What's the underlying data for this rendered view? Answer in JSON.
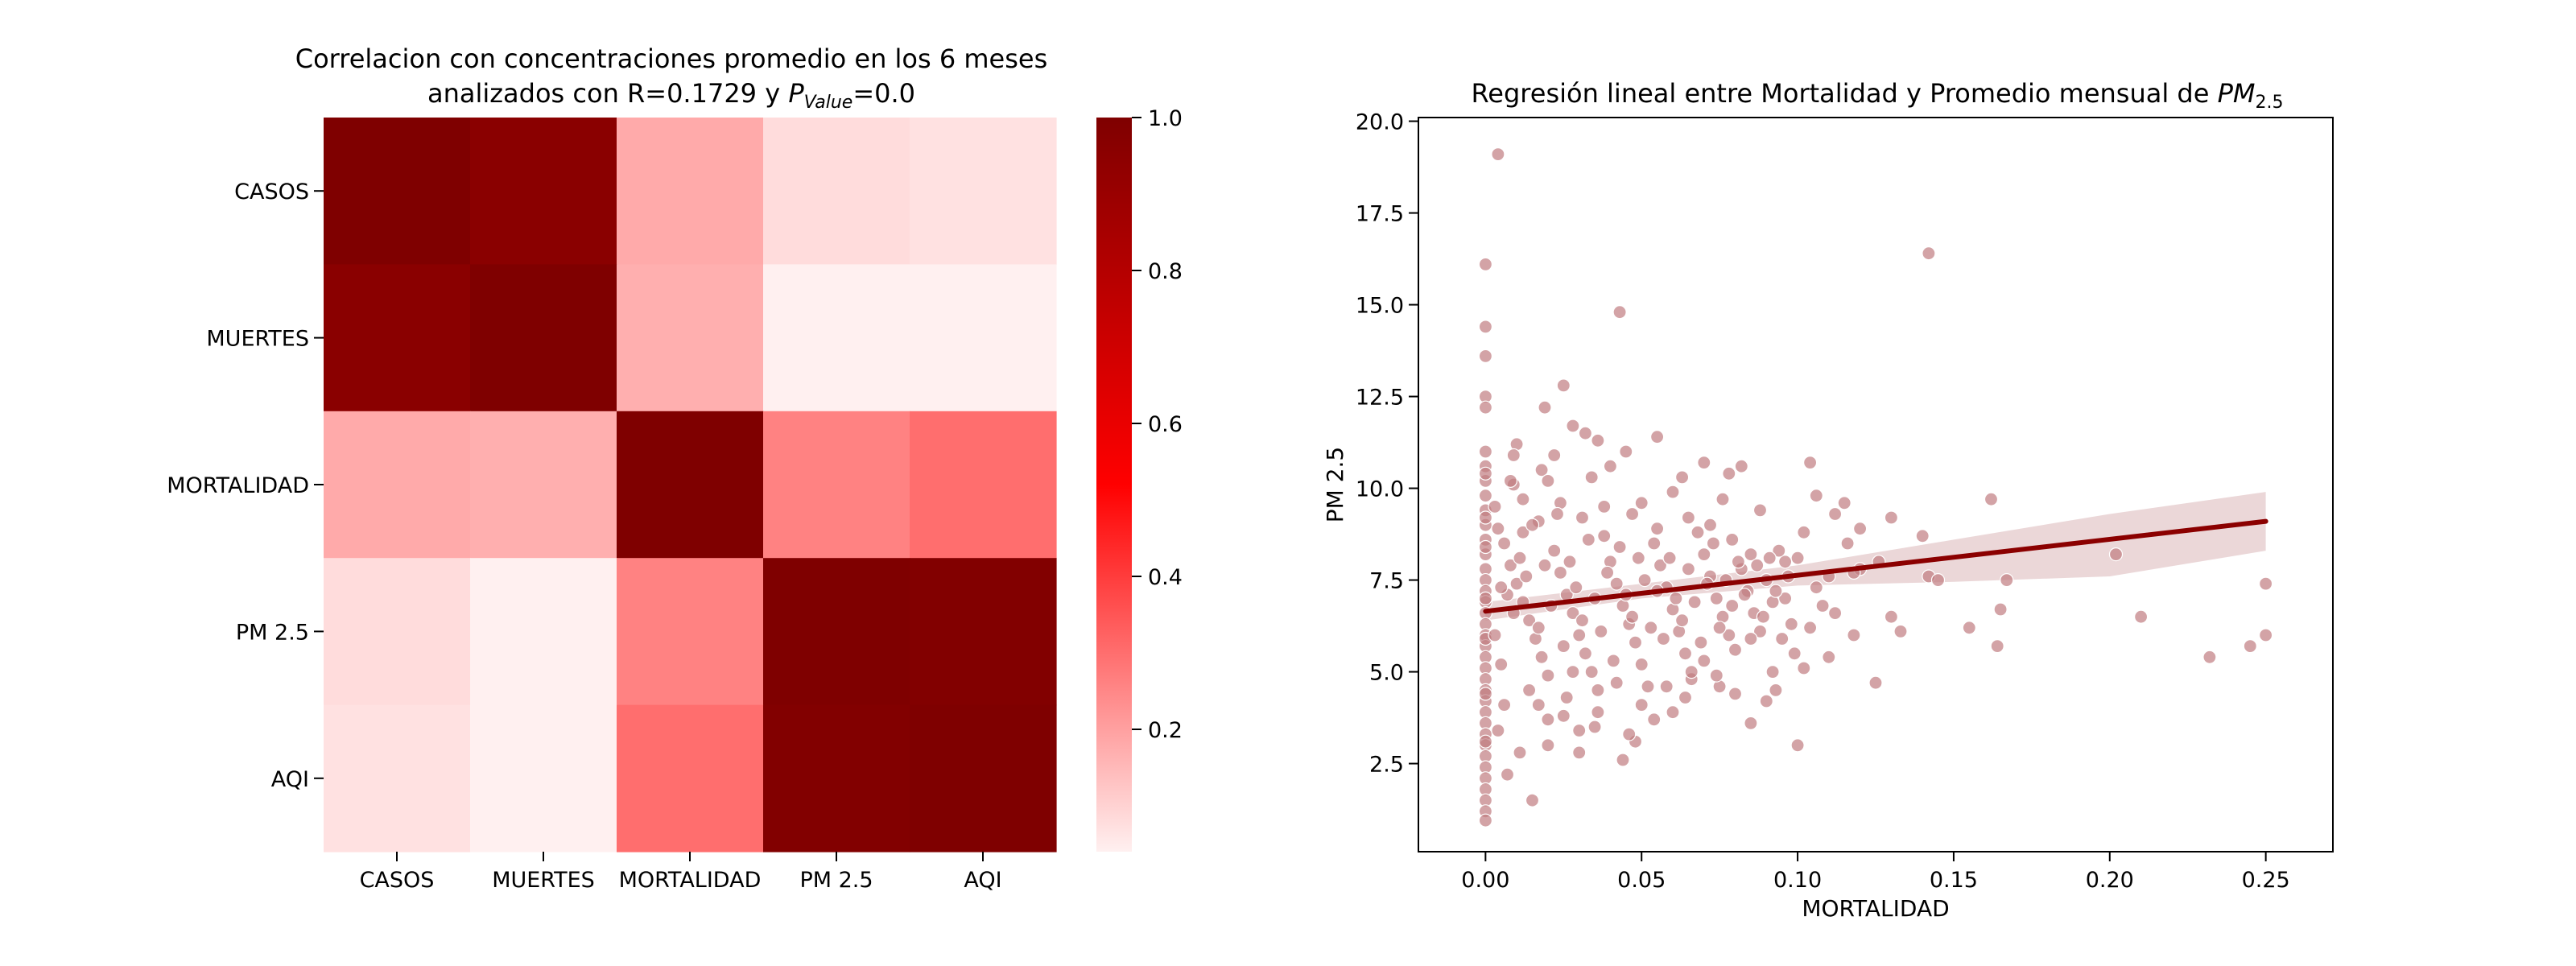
{
  "chart_data": [
    {
      "type": "heatmap",
      "title_line1": "Correlacion con concentraciones promedio en los 6 meses",
      "title_line2_prefix": "analizados con R=0.1729 y ",
      "title_line2_symbol": "P",
      "title_line2_subscript": "Value",
      "title_line2_suffix": "=0.0",
      "rows": [
        "CASOS",
        "MUERTES",
        "MORTALIDAD",
        "PM 2.5",
        "AQI"
      ],
      "columns": [
        "CASOS",
        "MUERTES",
        "MORTALIDAD",
        "PM 2.5",
        "AQI"
      ],
      "values": [
        [
          1.0,
          0.96,
          0.18,
          0.08,
          0.07
        ],
        [
          0.96,
          1.0,
          0.17,
          0.04,
          0.04
        ],
        [
          0.18,
          0.17,
          1.0,
          0.26,
          0.3
        ],
        [
          0.08,
          0.04,
          0.26,
          1.0,
          0.99
        ],
        [
          0.07,
          0.04,
          0.3,
          0.99,
          1.0
        ]
      ],
      "colorbar": {
        "min": 0.04,
        "max": 1.0,
        "ticks": [
          "0.2",
          "0.4",
          "0.6",
          "0.8",
          "1.0"
        ],
        "tick_values": [
          0.2,
          0.4,
          0.6,
          0.8,
          1.0
        ]
      },
      "colormap": [
        "#fff0f0",
        "#ff0000",
        "#7f0000"
      ]
    },
    {
      "type": "scatter",
      "title_prefix": "Regresión lineal entre Mortalidad y Promedio mensual de ",
      "title_symbol": "PM",
      "title_subscript": "2.5",
      "xlabel": "MORTALIDAD",
      "ylabel": "PM 2.5",
      "xlim": [
        -0.0215,
        0.2715
      ],
      "ylim": [
        0.1,
        20.1
      ],
      "xticks": [
        0.0,
        0.05,
        0.1,
        0.15,
        0.2,
        0.25
      ],
      "xtick_labels": [
        "0.00",
        "0.05",
        "0.10",
        "0.15",
        "0.20",
        "0.25"
      ],
      "yticks": [
        2.5,
        5.0,
        7.5,
        10.0,
        12.5,
        15.0,
        17.5,
        20.0
      ],
      "ytick_labels": [
        "2.5",
        "5.0",
        "7.5",
        "10.0",
        "12.5",
        "15.0",
        "17.5",
        "20.0"
      ],
      "point_color": "#c17c80",
      "line_color": "#8b0000",
      "band_color": "#e2c6c8",
      "regression": {
        "x": [
          0.0,
          0.25
        ],
        "y": [
          6.65,
          9.1
        ]
      },
      "confidence_band": {
        "x": [
          0.0,
          0.05,
          0.1,
          0.15,
          0.2,
          0.25
        ],
        "lower": [
          6.4,
          7.0,
          7.35,
          7.45,
          7.6,
          8.3
        ],
        "upper": [
          6.9,
          7.4,
          7.9,
          8.6,
          9.3,
          9.9
        ]
      },
      "points": [
        [
          0.004,
          19.1
        ],
        [
          0.0,
          16.1
        ],
        [
          0.0,
          14.4
        ],
        [
          0.0,
          13.6
        ],
        [
          0.0,
          12.5
        ],
        [
          0.0,
          12.2
        ],
        [
          0.0,
          11.0
        ],
        [
          0.0,
          10.6
        ],
        [
          0.0,
          10.2
        ],
        [
          0.0,
          9.8
        ],
        [
          0.0,
          9.4
        ],
        [
          0.0,
          9.0
        ],
        [
          0.0,
          8.6
        ],
        [
          0.0,
          8.2
        ],
        [
          0.0,
          7.8
        ],
        [
          0.0,
          7.5
        ],
        [
          0.0,
          7.2
        ],
        [
          0.0,
          6.9
        ],
        [
          0.0,
          6.6
        ],
        [
          0.0,
          6.3
        ],
        [
          0.0,
          6.0
        ],
        [
          0.0,
          5.7
        ],
        [
          0.0,
          5.4
        ],
        [
          0.0,
          5.1
        ],
        [
          0.0,
          4.8
        ],
        [
          0.0,
          4.5
        ],
        [
          0.0,
          4.2
        ],
        [
          0.0,
          3.9
        ],
        [
          0.0,
          3.6
        ],
        [
          0.0,
          3.3
        ],
        [
          0.0,
          3.0
        ],
        [
          0.0,
          2.7
        ],
        [
          0.0,
          2.4
        ],
        [
          0.0,
          2.1
        ],
        [
          0.0,
          1.8
        ],
        [
          0.0,
          1.5
        ],
        [
          0.0,
          1.2
        ],
        [
          0.0,
          0.95
        ],
        [
          0.0,
          10.4
        ],
        [
          0.0,
          9.2
        ],
        [
          0.0,
          8.4
        ],
        [
          0.0,
          7.0
        ],
        [
          0.0,
          5.9
        ],
        [
          0.0,
          4.4
        ],
        [
          0.0,
          3.1
        ],
        [
          0.142,
          16.4
        ],
        [
          0.043,
          14.8
        ],
        [
          0.025,
          12.8
        ],
        [
          0.019,
          12.2
        ],
        [
          0.028,
          11.7
        ],
        [
          0.032,
          11.5
        ],
        [
          0.055,
          11.4
        ],
        [
          0.045,
          11.0
        ],
        [
          0.036,
          11.3
        ],
        [
          0.01,
          11.2
        ],
        [
          0.104,
          10.7
        ],
        [
          0.082,
          10.6
        ],
        [
          0.07,
          10.7
        ],
        [
          0.009,
          10.9
        ],
        [
          0.018,
          10.5
        ],
        [
          0.04,
          10.6
        ],
        [
          0.063,
          10.3
        ],
        [
          0.078,
          10.4
        ],
        [
          0.009,
          10.1
        ],
        [
          0.02,
          10.2
        ],
        [
          0.115,
          9.6
        ],
        [
          0.112,
          9.3
        ],
        [
          0.13,
          9.2
        ],
        [
          0.106,
          9.8
        ],
        [
          0.162,
          9.7
        ],
        [
          0.06,
          9.9
        ],
        [
          0.05,
          9.6
        ],
        [
          0.076,
          9.7
        ],
        [
          0.088,
          9.4
        ],
        [
          0.14,
          8.7
        ],
        [
          0.167,
          7.5
        ],
        [
          0.142,
          7.6
        ],
        [
          0.145,
          7.5
        ],
        [
          0.202,
          8.2
        ],
        [
          0.21,
          6.5
        ],
        [
          0.155,
          6.2
        ],
        [
          0.165,
          6.7
        ],
        [
          0.164,
          5.7
        ],
        [
          0.13,
          6.5
        ],
        [
          0.133,
          6.1
        ],
        [
          0.125,
          4.7
        ],
        [
          0.1,
          3.0
        ],
        [
          0.09,
          4.2
        ],
        [
          0.085,
          3.6
        ],
        [
          0.25,
          7.4
        ],
        [
          0.25,
          6.0
        ],
        [
          0.245,
          5.7
        ],
        [
          0.232,
          5.4
        ],
        [
          0.015,
          1.5
        ],
        [
          0.007,
          2.2
        ],
        [
          0.011,
          2.8
        ],
        [
          0.02,
          3.0
        ],
        [
          0.03,
          2.8
        ],
        [
          0.044,
          2.6
        ],
        [
          0.048,
          3.1
        ],
        [
          0.054,
          3.7
        ],
        [
          0.03,
          3.4
        ],
        [
          0.035,
          3.5
        ],
        [
          0.025,
          3.8
        ],
        [
          0.017,
          4.1
        ],
        [
          0.02,
          3.7
        ],
        [
          0.014,
          4.5
        ],
        [
          0.064,
          4.3
        ],
        [
          0.066,
          4.8
        ],
        [
          0.075,
          4.6
        ],
        [
          0.093,
          4.5
        ],
        [
          0.102,
          5.1
        ],
        [
          0.11,
          5.4
        ],
        [
          0.095,
          5.9
        ],
        [
          0.11,
          7.6
        ],
        [
          0.12,
          7.8
        ],
        [
          0.126,
          8.0
        ],
        [
          0.1,
          8.1
        ],
        [
          0.096,
          8.0
        ],
        [
          0.085,
          8.2
        ],
        [
          0.079,
          8.6
        ],
        [
          0.065,
          9.2
        ],
        [
          0.072,
          9.0
        ],
        [
          0.055,
          8.9
        ],
        [
          0.047,
          9.3
        ],
        [
          0.038,
          9.5
        ],
        [
          0.031,
          9.2
        ],
        [
          0.024,
          9.6
        ],
        [
          0.017,
          9.1
        ],
        [
          0.012,
          8.8
        ],
        [
          0.006,
          8.5
        ],
        [
          0.008,
          7.9
        ],
        [
          0.01,
          7.4
        ],
        [
          0.012,
          6.9
        ],
        [
          0.014,
          6.4
        ],
        [
          0.016,
          5.9
        ],
        [
          0.018,
          5.4
        ],
        [
          0.02,
          4.9
        ],
        [
          0.022,
          8.3
        ],
        [
          0.024,
          7.7
        ],
        [
          0.026,
          7.1
        ],
        [
          0.028,
          6.6
        ],
        [
          0.03,
          6.0
        ],
        [
          0.032,
          5.5
        ],
        [
          0.034,
          5.0
        ],
        [
          0.036,
          4.5
        ],
        [
          0.038,
          8.7
        ],
        [
          0.04,
          8.0
        ],
        [
          0.042,
          7.4
        ],
        [
          0.044,
          6.8
        ],
        [
          0.046,
          6.3
        ],
        [
          0.048,
          5.8
        ],
        [
          0.05,
          5.2
        ],
        [
          0.052,
          4.6
        ],
        [
          0.054,
          8.5
        ],
        [
          0.056,
          7.9
        ],
        [
          0.058,
          7.3
        ],
        [
          0.06,
          6.7
        ],
        [
          0.062,
          6.1
        ],
        [
          0.064,
          5.5
        ],
        [
          0.066,
          5.0
        ],
        [
          0.068,
          8.8
        ],
        [
          0.07,
          8.2
        ],
        [
          0.072,
          7.6
        ],
        [
          0.074,
          7.0
        ],
        [
          0.076,
          6.5
        ],
        [
          0.078,
          6.0
        ],
        [
          0.08,
          5.6
        ],
        [
          0.082,
          7.8
        ],
        [
          0.084,
          7.2
        ],
        [
          0.086,
          6.6
        ],
        [
          0.088,
          6.1
        ],
        [
          0.09,
          7.5
        ],
        [
          0.092,
          6.9
        ],
        [
          0.094,
          8.3
        ],
        [
          0.096,
          7.0
        ],
        [
          0.098,
          6.3
        ],
        [
          0.102,
          8.8
        ],
        [
          0.106,
          7.3
        ],
        [
          0.108,
          6.8
        ],
        [
          0.116,
          8.5
        ],
        [
          0.118,
          7.7
        ],
        [
          0.12,
          8.9
        ],
        [
          0.007,
          7.1
        ],
        [
          0.009,
          6.6
        ],
        [
          0.011,
          8.1
        ],
        [
          0.013,
          7.6
        ],
        [
          0.015,
          9.0
        ],
        [
          0.017,
          6.2
        ],
        [
          0.019,
          7.9
        ],
        [
          0.021,
          6.8
        ],
        [
          0.023,
          9.3
        ],
        [
          0.025,
          5.7
        ],
        [
          0.027,
          8.0
        ],
        [
          0.029,
          7.3
        ],
        [
          0.031,
          6.4
        ],
        [
          0.033,
          8.6
        ],
        [
          0.035,
          7.0
        ],
        [
          0.037,
          6.1
        ],
        [
          0.039,
          7.7
        ],
        [
          0.041,
          5.3
        ],
        [
          0.043,
          8.4
        ],
        [
          0.045,
          7.1
        ],
        [
          0.047,
          6.5
        ],
        [
          0.049,
          8.1
        ],
        [
          0.051,
          7.5
        ],
        [
          0.053,
          6.2
        ],
        [
          0.055,
          7.2
        ],
        [
          0.057,
          5.9
        ],
        [
          0.059,
          8.1
        ],
        [
          0.061,
          7.0
        ],
        [
          0.063,
          6.4
        ],
        [
          0.065,
          7.8
        ],
        [
          0.067,
          6.9
        ],
        [
          0.069,
          5.8
        ],
        [
          0.071,
          7.4
        ],
        [
          0.073,
          8.5
        ],
        [
          0.075,
          6.2
        ],
        [
          0.077,
          7.5
        ],
        [
          0.079,
          6.8
        ],
        [
          0.081,
          8.0
        ],
        [
          0.083,
          7.1
        ],
        [
          0.085,
          5.9
        ],
        [
          0.087,
          7.9
        ],
        [
          0.089,
          6.5
        ],
        [
          0.091,
          8.1
        ],
        [
          0.093,
          7.2
        ],
        [
          0.097,
          7.6
        ],
        [
          0.099,
          5.5
        ],
        [
          0.003,
          6.0
        ],
        [
          0.005,
          7.3
        ],
        [
          0.004,
          8.9
        ],
        [
          0.003,
          9.5
        ],
        [
          0.005,
          5.2
        ],
        [
          0.006,
          4.1
        ],
        [
          0.004,
          3.4
        ],
        [
          0.008,
          10.2
        ],
        [
          0.012,
          9.7
        ],
        [
          0.022,
          10.9
        ],
        [
          0.034,
          10.3
        ],
        [
          0.028,
          5.0
        ],
        [
          0.026,
          4.3
        ],
        [
          0.036,
          3.9
        ],
        [
          0.042,
          4.7
        ],
        [
          0.046,
          3.3
        ],
        [
          0.05,
          4.1
        ],
        [
          0.058,
          4.6
        ],
        [
          0.06,
          3.9
        ],
        [
          0.07,
          5.3
        ],
        [
          0.074,
          4.9
        ],
        [
          0.08,
          4.4
        ],
        [
          0.092,
          5.0
        ],
        [
          0.112,
          6.6
        ],
        [
          0.118,
          6.0
        ],
        [
          0.104,
          6.2
        ]
      ]
    }
  ]
}
